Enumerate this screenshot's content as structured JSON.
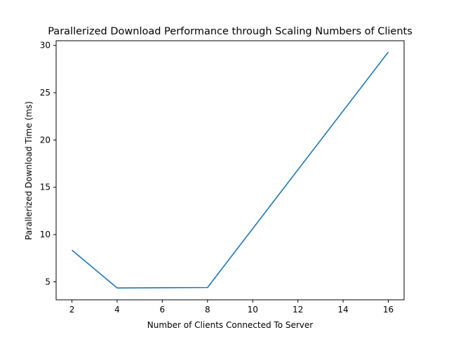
{
  "chart_data": {
    "type": "line",
    "title": "Parallerized Download Performance through Scaling Numbers of Clients",
    "xlabel": "Number of Clients Connected To Server",
    "ylabel": "Parallerized Download Time (ms)",
    "xlim": [
      1.3,
      16.7
    ],
    "ylim": [
      3.1,
      30.5
    ],
    "xticks": [
      2,
      4,
      6,
      8,
      10,
      12,
      14,
      16
    ],
    "yticks": [
      5,
      10,
      15,
      20,
      25,
      30
    ],
    "grid": false,
    "series": [
      {
        "color": "#1f77b4",
        "x": [
          2,
          4,
          8,
          16
        ],
        "y": [
          8.35,
          4.35,
          4.4,
          29.3
        ]
      }
    ]
  }
}
